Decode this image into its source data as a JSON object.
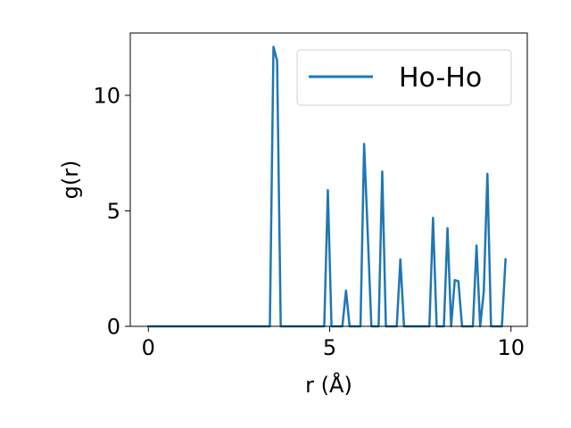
{
  "chart_data": {
    "type": "line",
    "title": "",
    "xlabel": "r (Å)",
    "ylabel": "g(r)",
    "xlim": [
      -0.5,
      10.45
    ],
    "ylim": [
      0,
      12.7
    ],
    "xticks": [
      0,
      5,
      10
    ],
    "yticks": [
      0,
      5,
      10
    ],
    "grid": false,
    "legend_position": "top-right",
    "series": [
      {
        "name": "Ho-Ho",
        "color": "#1f77b4",
        "x": [
          0.0,
          3.35,
          3.45,
          3.55,
          3.65,
          4.85,
          4.95,
          5.05,
          5.35,
          5.45,
          5.55,
          5.85,
          5.95,
          6.05,
          6.15,
          6.35,
          6.45,
          6.55,
          6.85,
          6.95,
          7.05,
          7.75,
          7.85,
          7.95,
          8.15,
          8.25,
          8.35,
          8.45,
          8.55,
          8.65,
          8.95,
          9.05,
          9.15,
          9.25,
          9.35,
          9.45,
          9.75,
          9.85
        ],
        "y": [
          0,
          0,
          12.1,
          11.5,
          0,
          0,
          5.9,
          0,
          0,
          1.55,
          0,
          0,
          7.9,
          4.0,
          0,
          0,
          6.7,
          0,
          0,
          2.9,
          0,
          0,
          4.7,
          0,
          0,
          4.25,
          0,
          2.0,
          1.95,
          0,
          0,
          3.5,
          0,
          1.5,
          6.6,
          0,
          0,
          2.9
        ]
      }
    ]
  }
}
